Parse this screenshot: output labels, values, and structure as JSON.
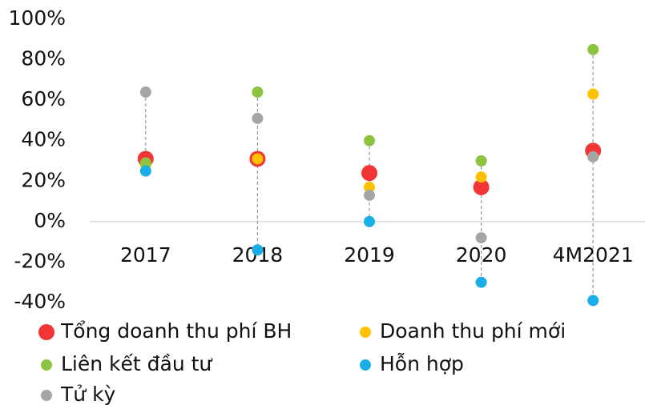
{
  "chart_data": {
    "type": "dot",
    "categories": [
      "2017",
      "2018",
      "2019",
      "2020",
      "4M2021"
    ],
    "series": [
      {
        "name": "Tổng doanh thu phí BH",
        "color": "#f23535",
        "values": [
          31,
          31,
          24,
          17,
          35
        ]
      },
      {
        "name": "Doanh thu phí mới",
        "color": "#ffc000",
        "values": [
          28,
          31,
          17,
          22,
          63
        ]
      },
      {
        "name": "Liên kết đầu tư",
        "color": "#8cc43f",
        "values": [
          29,
          64,
          40,
          30,
          85
        ]
      },
      {
        "name": "Hỗn hợp",
        "color": "#1aaee8",
        "values": [
          25,
          -14,
          0,
          -30,
          -39
        ]
      },
      {
        "name": "Tử kỳ",
        "color": "#a5a5a5",
        "values": [
          64,
          51,
          13,
          -8,
          32
        ]
      }
    ],
    "ylim": [
      -40,
      100
    ],
    "yticks": [
      {
        "value": -40,
        "label": "-40%"
      },
      {
        "value": -20,
        "label": "-20%"
      },
      {
        "value": 0,
        "label": "0%"
      },
      {
        "value": 20,
        "label": "20%"
      },
      {
        "value": 40,
        "label": "40%"
      },
      {
        "value": 60,
        "label": "60%"
      },
      {
        "value": 80,
        "label": "80%"
      },
      {
        "value": 100,
        "label": "100%"
      }
    ],
    "grid": false
  }
}
